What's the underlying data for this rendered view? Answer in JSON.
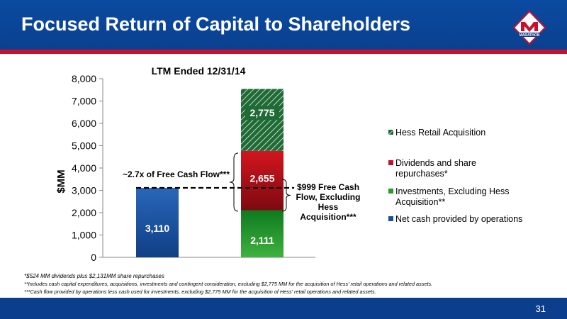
{
  "header": {
    "title": "Focused Return of Capital to Shareholders",
    "logo_text": "MARATHON"
  },
  "colors": {
    "header_blue": "#0b3f8e",
    "accent_red": "#c8102e",
    "bar_blue": "#1a4f9c",
    "green": "#2e9a2e",
    "red": "#b5121b",
    "hatch_green": "#1f6b35"
  },
  "chart_data": {
    "type": "bar",
    "stacked": true,
    "title": "LTM Ended 12/31/14",
    "ylabel": "$MM",
    "ylim": [
      0,
      8000
    ],
    "yticks": [
      "0",
      "1,000",
      "2,000",
      "3,000",
      "4,000",
      "5,000",
      "6,000",
      "7,000",
      "8,000"
    ],
    "series": [
      {
        "name": "Net cash provided by operations",
        "values": [
          3110,
          0
        ],
        "labels": [
          "3,110",
          ""
        ]
      },
      {
        "name": "Investments, Excluding Hess Acquisition**",
        "values": [
          0,
          2111
        ],
        "labels": [
          "",
          "2,111"
        ]
      },
      {
        "name": "Dividends and share repurchases*",
        "values": [
          0,
          2655
        ],
        "labels": [
          "",
          "2,655"
        ]
      },
      {
        "name": "Hess Retail Acquisition",
        "values": [
          0,
          2775
        ],
        "labels": [
          "",
          "2,775"
        ]
      }
    ],
    "legend_order": [
      "Hess Retail Acquisition",
      "Dividends and share repurchases*",
      "Investments, Excluding Hess Acquisition**",
      "Net cash provided by operations"
    ],
    "legend_position": "right",
    "reference_line": {
      "value": 3110,
      "style": "dashed"
    },
    "annotations": {
      "left": "~2.7x of Free Cash Flow***",
      "right": "$999 Free Cash Flow, Excluding Hess Acquisition***"
    }
  },
  "footnotes": {
    "f1": "*$524 MM dividends plus $2,131MM share repurchases",
    "f2": "**Includes cash capital expenditures, acquisitions, investments and contingent consideration, excluding $2,775 MM for the acquisition of Hess' retail operations and related assets.",
    "f3": "***Cash flow provided by operations less cash used for investments, excluding $2,775 MM for the acquisition of Hess' retail operations and related assets."
  },
  "footer": {
    "page_number": "31"
  }
}
